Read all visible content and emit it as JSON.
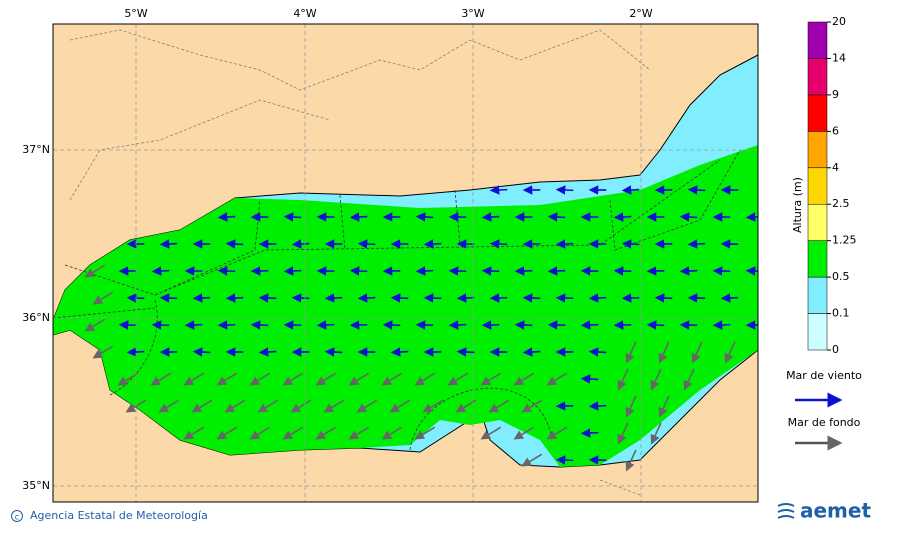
{
  "map": {
    "lon_labels": [
      "5°W",
      "4°W",
      "3°W",
      "2°W"
    ],
    "lat_labels": [
      "37°N",
      "36°N",
      "35°N"
    ]
  },
  "colorbar": {
    "title": "Altura (m)",
    "levels": [
      0,
      0.1,
      0.5,
      1.25,
      2.5,
      4,
      6,
      9,
      14,
      20
    ],
    "colors": [
      "#ccffff",
      "#80eeff",
      "#00ee00",
      "#ffff66",
      "#ffd700",
      "#ffa500",
      "#ff0000",
      "#e6006e",
      "#a000b0"
    ]
  },
  "legend": {
    "wind_sea": "Mar de viento",
    "swell": "Mar de fondo"
  },
  "footer": {
    "agency": "Agencia Estatal de Meteorología",
    "logo": "aemet"
  }
}
